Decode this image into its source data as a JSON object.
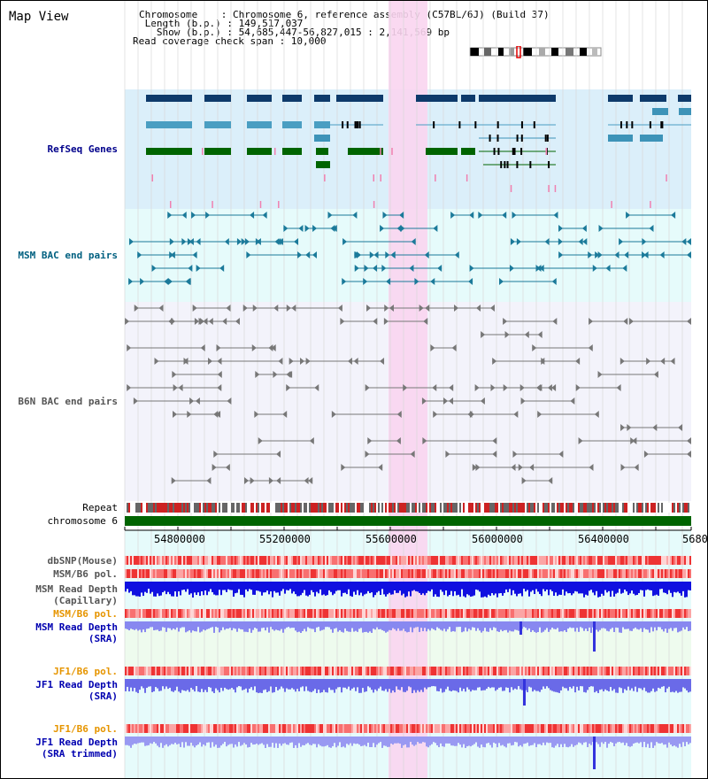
{
  "page_title": "Map View",
  "header": {
    "chromosome_line": "Chromosome    : Chromosome 6, reference assembly (C57BL/6J) (Build 37)",
    "length_line": " Length (b.p.) : 149,517,037",
    "show_line": "   Show (b.p.) : 54,685,447-56,827,015 : 2,141,569 bp",
    "coverage_line": "Read coverage check span : 10,000"
  },
  "tracks": {
    "refseq": "RefSeq Genes",
    "msm_bac": "MSM BAC end pairs",
    "b6n_bac": "B6N BAC end pairs",
    "repeat": "Repeat",
    "chromosome": "chromosome 6",
    "dbsnp": "dbSNP(Mouse)",
    "msm_b6_pol_1": "MSM/B6 pol.",
    "msm_read_depth_cap": "MSM Read Depth",
    "msm_read_depth_cap_sub": "(Capillary)",
    "msm_b6_pol_2": "MSM/B6 pol.",
    "msm_read_depth_sra": "MSM Read Depth",
    "msm_read_depth_sra_sub": "(SRA)",
    "jf1_b6_pol_1": "JF1/B6 pol.",
    "jf1_read_depth_sra": "JF1 Read Depth",
    "jf1_read_depth_sra_sub": "(SRA)",
    "jf1_b6_pol_2": "JF1/B6 pol.",
    "jf1_read_depth_trim": "JF1 Read Depth",
    "jf1_read_depth_trim_sub": "(SRA trimmed)"
  },
  "axis_ticks": [
    "54800000",
    "55200000",
    "55600000",
    "56000000",
    "56400000",
    "5680"
  ],
  "colors": {
    "refseq_bg": "#dbeffa",
    "msm_bg": "#e6fbfb",
    "b6n_bg": "#f3f3fb",
    "highlight": "#f9d5f0",
    "refseq_label": "#00008b",
    "msm_label": "#006080",
    "b6n_label": "#555555",
    "pol_orange": "#e69500"
  }
}
